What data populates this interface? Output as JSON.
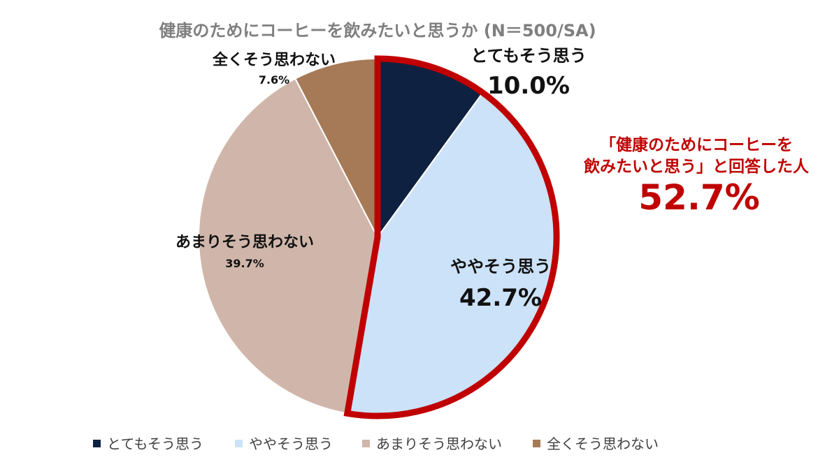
{
  "chart_data": {
    "type": "pie",
    "title": "健康のためにコーヒーを飲みたいと思うか (N＝500/SA)",
    "slices": [
      {
        "label": "とてもそう思う",
        "value": 10.0,
        "value_label": "10.0%",
        "color": "#0f2140"
      },
      {
        "label": "ややそう思う",
        "value": 42.7,
        "value_label": "42.7%",
        "color": "#cce2f8"
      },
      {
        "label": "あまりそう思わない",
        "value": 39.7,
        "value_label": "39.7%",
        "color": "#d0b6aa"
      },
      {
        "label": "全くそう思わない",
        "value": 7.6,
        "value_label": "7.6%",
        "color": "#a67a56"
      }
    ],
    "start": "12 o'clock",
    "direction": "clockwise",
    "highlight_color": "#c00000",
    "legend_position": "bottom"
  },
  "callout": {
    "line1": "「健康のためにコーヒーを",
    "line2": "飲みたいと思う」と回答した人",
    "value": "52.7%"
  }
}
